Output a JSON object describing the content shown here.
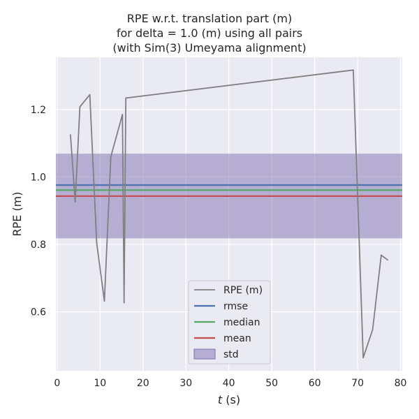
{
  "chart_data": {
    "type": "line",
    "title_lines": [
      "RPE w.r.t. translation part (m)",
      "for delta = 1.0 (m) using all pairs",
      "(with Sim(3) Umeyama alignment)"
    ],
    "xlabel": "t (s)",
    "xlabel_var": "t",
    "xlabel_unit": " (s)",
    "ylabel": "RPE (m)",
    "xlim": [
      -0.3,
      80.4
    ],
    "ylim": [
      0.425,
      1.355
    ],
    "xticks": [
      0,
      10,
      20,
      30,
      40,
      50,
      60,
      70,
      80
    ],
    "yticks": [
      0.6,
      0.8,
      1.0,
      1.2
    ],
    "ytick_labels": [
      "0.6",
      "0.8",
      "1.0",
      "1.2"
    ],
    "grid": true,
    "background": "#eaeaf2",
    "legend_position": "lower center",
    "series": [
      {
        "name": "RPE (m)",
        "color": "#808080",
        "x": [
          3.1,
          4.2,
          5.3,
          7.6,
          9.2,
          11.0,
          12.5,
          15.2,
          15.6,
          16.0,
          69.0,
          71.3,
          73.5,
          75.5,
          77.0
        ],
        "y": [
          1.125,
          0.926,
          1.208,
          1.244,
          0.805,
          0.632,
          1.06,
          1.185,
          0.627,
          1.234,
          1.317,
          0.464,
          0.547,
          0.768,
          0.754
        ]
      }
    ],
    "hlines": [
      {
        "name": "rmse",
        "value": 0.976,
        "color": "#4c72b0"
      },
      {
        "name": "median",
        "value": 0.961,
        "color": "#55a868"
      },
      {
        "name": "mean",
        "value": 0.943,
        "color": "#c44e52"
      }
    ],
    "band": {
      "name": "std",
      "low": 0.818,
      "high": 1.069,
      "color": "#8172b2"
    }
  }
}
